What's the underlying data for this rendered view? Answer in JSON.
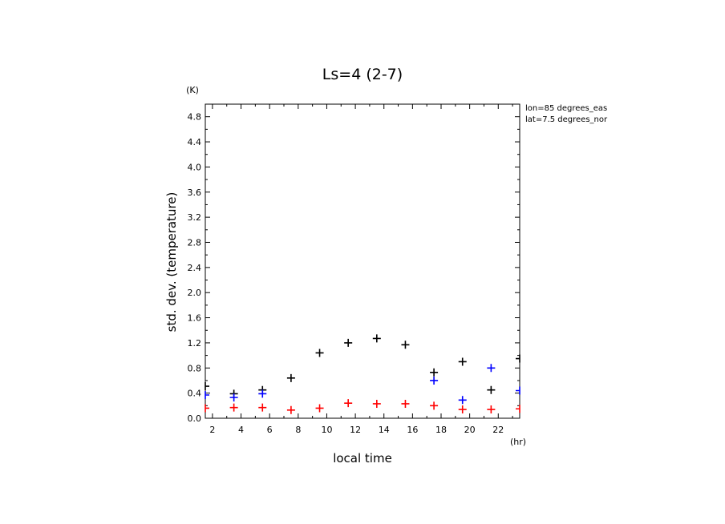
{
  "chart_data": {
    "type": "scatter",
    "title": "Ls=4 (2-7)",
    "xlabel": "local time",
    "ylabel": "std. dev. (temperature)",
    "x_unit": "(hr)",
    "y_unit": "(K)",
    "info": [
      "lon=85 degrees_eas",
      "lat=7.5 degrees_nor"
    ],
    "xlim": [
      1.5,
      23.5
    ],
    "ylim": [
      0,
      5.0
    ],
    "xticks": [
      2,
      4,
      6,
      8,
      10,
      12,
      14,
      16,
      18,
      20,
      22
    ],
    "yticks": [
      0.0,
      0.4,
      0.8,
      1.2,
      1.6,
      2.0,
      2.4,
      2.8,
      3.2,
      3.6,
      4.0,
      4.4,
      4.8
    ],
    "ytick_labels": [
      "0.0",
      "0.4",
      "0.8",
      "1.2",
      "1.6",
      "2.0",
      "2.4",
      "2.8",
      "3.2",
      "3.6",
      "4.0",
      "4.4",
      "4.8"
    ],
    "grid": false,
    "series": [
      {
        "color": "#000000",
        "x": [
          1.5,
          3.5,
          5.5,
          7.5,
          9.5,
          11.5,
          13.5,
          15.5,
          17.5,
          19.5,
          21.5,
          23.5
        ],
        "values": [
          0.51,
          0.39,
          0.45,
          0.64,
          1.04,
          1.2,
          1.27,
          1.17,
          0.73,
          0.9,
          0.45,
          0.95
        ]
      },
      {
        "color": "#0000ff",
        "x": [
          1.5,
          3.5,
          5.5,
          17.5,
          19.5,
          21.5,
          23.5
        ],
        "values": [
          0.37,
          0.33,
          0.39,
          0.6,
          0.29,
          0.8,
          0.44
        ]
      },
      {
        "color": "#ff0000",
        "x": [
          1.5,
          3.5,
          5.5,
          7.5,
          9.5,
          11.5,
          13.5,
          15.5,
          17.5,
          19.5,
          21.5,
          23.5
        ],
        "values": [
          0.16,
          0.17,
          0.17,
          0.13,
          0.16,
          0.24,
          0.23,
          0.23,
          0.2,
          0.14,
          0.14,
          0.15
        ]
      }
    ]
  }
}
